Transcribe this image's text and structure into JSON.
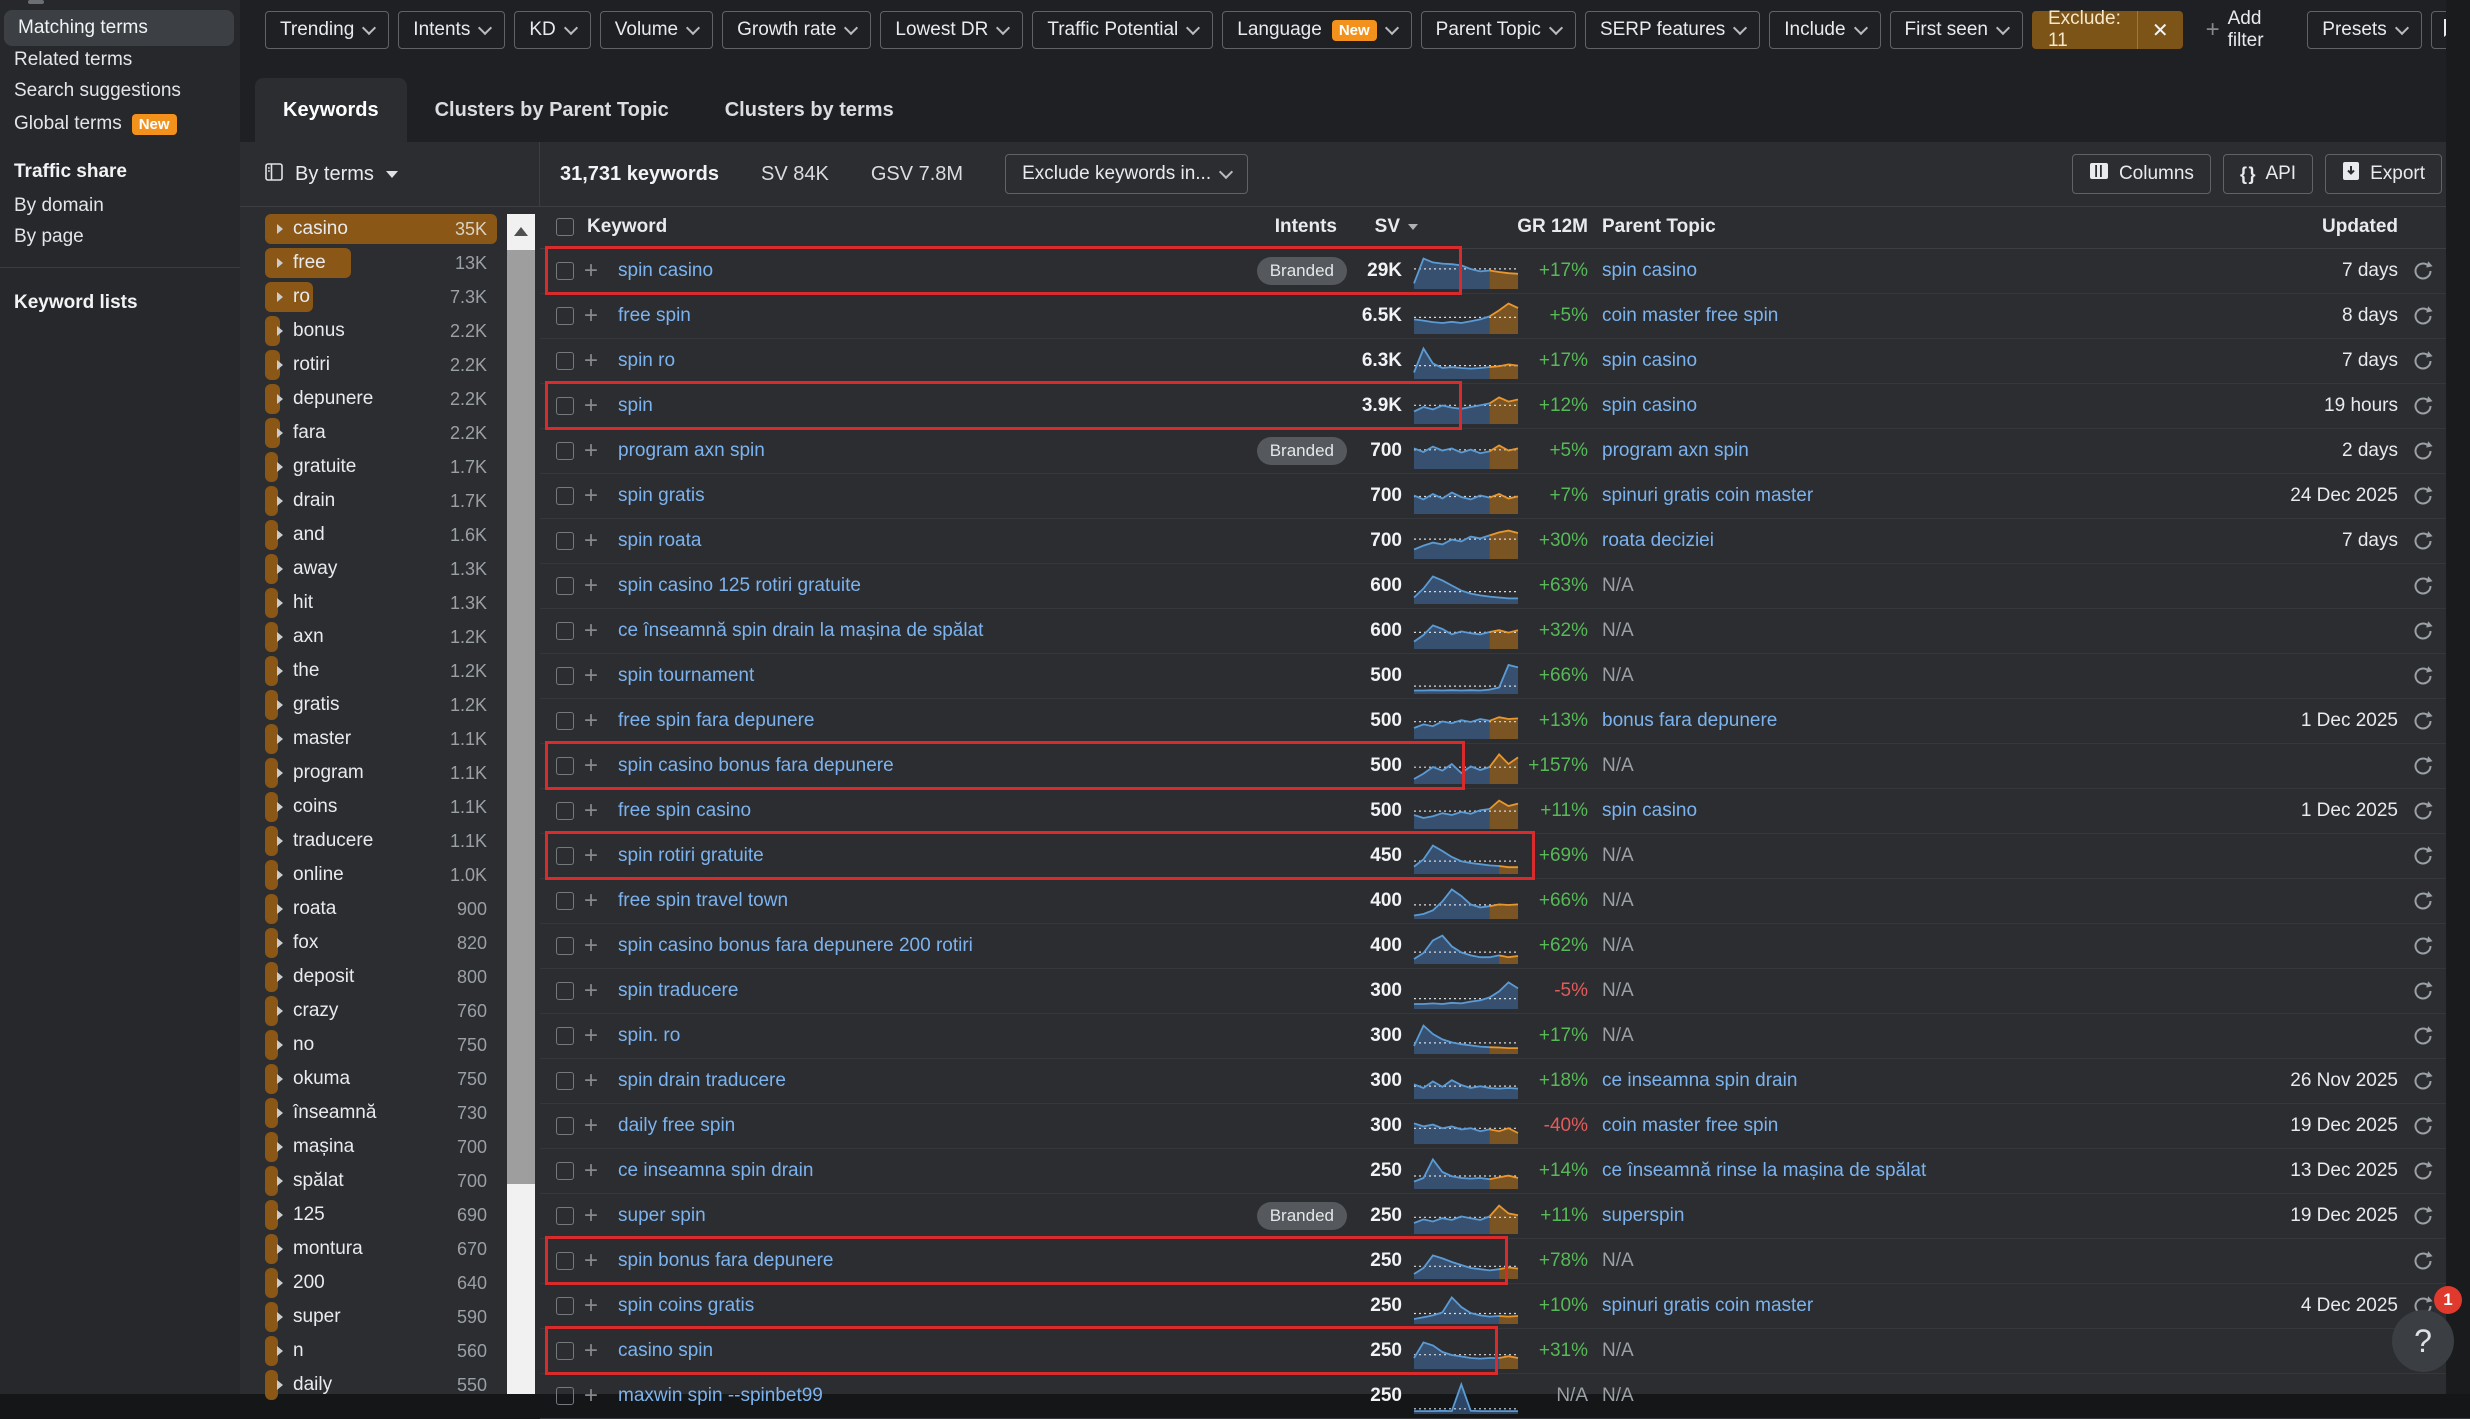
{
  "colors": {
    "accent_amber": "#8a5717",
    "link_blue": "#7cb3ef",
    "positive_green": "#57b957",
    "negative_red": "#e25c5c",
    "badge_orange": "#f2921d",
    "annotation_red": "#d92b2b"
  },
  "sidebar": {
    "items": [
      {
        "label": "Matching terms",
        "active": true
      },
      {
        "label": "Related terms"
      },
      {
        "label": "Search suggestions"
      },
      {
        "label": "Global terms",
        "badge": "New"
      }
    ],
    "traffic_share": {
      "title": "Traffic share",
      "items": [
        {
          "label": "By domain"
        },
        {
          "label": "By page"
        }
      ]
    },
    "keyword_lists": "Keyword lists"
  },
  "filters": {
    "dropdowns": [
      {
        "label": "Trending"
      },
      {
        "label": "Intents"
      },
      {
        "label": "KD"
      },
      {
        "label": "Volume"
      },
      {
        "label": "Growth rate"
      },
      {
        "label": "Lowest DR"
      },
      {
        "label": "Traffic Potential"
      },
      {
        "label": "Language",
        "badge": "New"
      },
      {
        "label": "Parent Topic"
      },
      {
        "label": "SERP features"
      },
      {
        "label": "Include"
      },
      {
        "label": "First seen"
      }
    ],
    "exclude": {
      "label": "Exclude: 11",
      "close": "✕"
    },
    "add_filter": "Add filter",
    "presets": "Presets"
  },
  "tabs": [
    {
      "label": "Keywords",
      "active": true
    },
    {
      "label": "Clusters by Parent Topic"
    },
    {
      "label": "Clusters by terms"
    }
  ],
  "toolbar": {
    "view_label": "By terms",
    "keywords_count": "31,731 keywords",
    "sv": "SV 84K",
    "gsv": "GSV 7.8M",
    "exclude_keywords": "Exclude keywords in...",
    "columns_label": "Columns",
    "api_label": "API",
    "export_label": "Export"
  },
  "terms": {
    "max": 35000,
    "items": [
      {
        "term": "casino",
        "count": "35K",
        "value": 35000,
        "selected": true
      },
      {
        "term": "free",
        "count": "13K",
        "value": 13000
      },
      {
        "term": "ro",
        "count": "7.3K",
        "value": 7300
      },
      {
        "term": "bonus",
        "count": "2.2K",
        "value": 2200
      },
      {
        "term": "rotiri",
        "count": "2.2K",
        "value": 2200
      },
      {
        "term": "depunere",
        "count": "2.2K",
        "value": 2200
      },
      {
        "term": "fara",
        "count": "2.2K",
        "value": 2200
      },
      {
        "term": "gratuite",
        "count": "1.7K",
        "value": 1700
      },
      {
        "term": "drain",
        "count": "1.7K",
        "value": 1700
      },
      {
        "term": "and",
        "count": "1.6K",
        "value": 1600
      },
      {
        "term": "away",
        "count": "1.3K",
        "value": 1300
      },
      {
        "term": "hit",
        "count": "1.3K",
        "value": 1300
      },
      {
        "term": "axn",
        "count": "1.2K",
        "value": 1200
      },
      {
        "term": "the",
        "count": "1.2K",
        "value": 1200
      },
      {
        "term": "gratis",
        "count": "1.2K",
        "value": 1200
      },
      {
        "term": "master",
        "count": "1.1K",
        "value": 1100
      },
      {
        "term": "program",
        "count": "1.1K",
        "value": 1100
      },
      {
        "term": "coins",
        "count": "1.1K",
        "value": 1100
      },
      {
        "term": "traducere",
        "count": "1.1K",
        "value": 1100
      },
      {
        "term": "online",
        "count": "1.0K",
        "value": 1000
      },
      {
        "term": "roata",
        "count": "900",
        "value": 900
      },
      {
        "term": "fox",
        "count": "820",
        "value": 820
      },
      {
        "term": "deposit",
        "count": "800",
        "value": 800
      },
      {
        "term": "crazy",
        "count": "760",
        "value": 760
      },
      {
        "term": "no",
        "count": "750",
        "value": 750
      },
      {
        "term": "okuma",
        "count": "750",
        "value": 750
      },
      {
        "term": "înseamnă",
        "count": "730",
        "value": 730
      },
      {
        "term": "mașina",
        "count": "700",
        "value": 700
      },
      {
        "term": "spălat",
        "count": "700",
        "value": 700
      },
      {
        "term": "125",
        "count": "690",
        "value": 690
      },
      {
        "term": "montura",
        "count": "670",
        "value": 670
      },
      {
        "term": "200",
        "count": "640",
        "value": 640
      },
      {
        "term": "super",
        "count": "590",
        "value": 590
      },
      {
        "term": "n",
        "count": "560",
        "value": 560
      },
      {
        "term": "daily",
        "count": "550",
        "value": 550
      }
    ]
  },
  "table": {
    "headers": {
      "keyword": "Keyword",
      "intents": "Intents",
      "sv": "SV",
      "gr": "GR 12M",
      "parent": "Parent Topic",
      "updated": "Updated"
    },
    "rows": [
      {
        "k": "spin casino",
        "badge": "Branded",
        "sv": "29K",
        "gr": "+17%",
        "parent": "spin casino",
        "updated": "7 days",
        "red": 917,
        "spark": {
          "v": [
            0.12,
            0.95,
            0.82,
            0.78,
            0.76,
            0.72,
            0.6,
            0.52,
            0.55,
            0.5,
            0.46,
            0.44
          ],
          "o": 8
        }
      },
      {
        "k": "free spin",
        "sv": "6.5K",
        "gr": "+5%",
        "parent": "coin master free spin",
        "updated": "8 days",
        "spark": {
          "v": [
            0.42,
            0.38,
            0.33,
            0.3,
            0.34,
            0.3,
            0.36,
            0.42,
            0.52,
            0.72,
            0.95,
            0.8
          ],
          "o": 8
        }
      },
      {
        "k": "spin ro",
        "sv": "6.3K",
        "gr": "+17%",
        "parent": "spin casino",
        "updated": "7 days",
        "spark": {
          "v": [
            0.15,
            0.95,
            0.45,
            0.3,
            0.33,
            0.3,
            0.28,
            0.3,
            0.33,
            0.36,
            0.42,
            0.38
          ],
          "o": 8
        }
      },
      {
        "k": "spin",
        "sv": "3.9K",
        "gr": "+12%",
        "parent": "spin casino",
        "updated": "19 hours",
        "red": 917,
        "spark": {
          "v": [
            0.35,
            0.5,
            0.42,
            0.55,
            0.48,
            0.44,
            0.5,
            0.56,
            0.62,
            0.82,
            0.68,
            0.75
          ],
          "o": 8
        }
      },
      {
        "k": "program axn spin",
        "badge": "Branded",
        "sv": "700",
        "gr": "+5%",
        "parent": "program axn spin",
        "updated": "2 days",
        "spark": {
          "v": [
            0.62,
            0.5,
            0.68,
            0.55,
            0.62,
            0.48,
            0.58,
            0.46,
            0.52,
            0.72,
            0.55,
            0.62
          ],
          "o": 8
        }
      },
      {
        "k": "spin gratis",
        "sv": "700",
        "gr": "+7%",
        "parent": "spinuri gratis coin master",
        "updated": "24 Dec 2025",
        "spark": {
          "v": [
            0.55,
            0.42,
            0.6,
            0.45,
            0.65,
            0.5,
            0.42,
            0.55,
            0.48,
            0.6,
            0.45,
            0.52
          ],
          "o": 8
        }
      },
      {
        "k": "spin roata",
        "sv": "700",
        "gr": "+30%",
        "parent": "roata deciziei",
        "updated": "7 days",
        "spark": {
          "v": [
            0.25,
            0.38,
            0.48,
            0.42,
            0.58,
            0.52,
            0.68,
            0.62,
            0.72,
            0.82,
            0.88,
            0.8
          ],
          "o": 8
        }
      },
      {
        "k": "spin casino 125 rotiri gratuite",
        "sv": "600",
        "gr": "+63%",
        "parent": "N/A",
        "updated": "",
        "spark": {
          "v": [
            0.15,
            0.45,
            0.85,
            0.72,
            0.55,
            0.38,
            0.28,
            0.22,
            0.18,
            0.15,
            0.12,
            0.12
          ],
          "o": -1
        }
      },
      {
        "k": "ce înseamnă spin drain la mașina de spălat",
        "sv": "600",
        "gr": "+32%",
        "parent": "N/A",
        "updated": "",
        "spark": {
          "v": [
            0.18,
            0.4,
            0.72,
            0.6,
            0.42,
            0.52,
            0.46,
            0.42,
            0.5,
            0.56,
            0.48,
            0.56
          ],
          "o": 8
        }
      },
      {
        "k": "spin tournament",
        "sv": "500",
        "gr": "+66%",
        "parent": "N/A",
        "updated": "",
        "spark": {
          "v": [
            0.05,
            0.05,
            0.06,
            0.05,
            0.06,
            0.05,
            0.06,
            0.05,
            0.08,
            0.15,
            0.9,
            0.82
          ],
          "o": -1
        }
      },
      {
        "k": "free spin fara depunere",
        "sv": "500",
        "gr": "+13%",
        "parent": "bonus fara depunere",
        "updated": "1 Dec 2025",
        "spark": {
          "v": [
            0.3,
            0.42,
            0.36,
            0.52,
            0.46,
            0.56,
            0.5,
            0.6,
            0.54,
            0.66,
            0.6,
            0.62
          ],
          "o": 8
        }
      },
      {
        "k": "spin casino bonus fara depunere",
        "sv": "500",
        "gr": "+157%",
        "parent": "N/A",
        "updated": "",
        "red": 920,
        "spark": {
          "v": [
            0.1,
            0.28,
            0.5,
            0.38,
            0.6,
            0.3,
            0.52,
            0.4,
            0.5,
            0.92,
            0.6,
            0.82
          ],
          "o": 8
        }
      },
      {
        "k": "free spin casino",
        "sv": "500",
        "gr": "+11%",
        "parent": "spin casino",
        "updated": "1 Dec 2025",
        "spark": {
          "v": [
            0.4,
            0.3,
            0.36,
            0.46,
            0.4,
            0.5,
            0.44,
            0.56,
            0.6,
            0.88,
            0.7,
            0.78
          ],
          "o": 8
        }
      },
      {
        "k": "spin rotiri gratuite",
        "sv": "450",
        "gr": "+69%",
        "parent": "N/A",
        "updated": "",
        "red": 990,
        "spark": {
          "v": [
            0.18,
            0.42,
            0.88,
            0.7,
            0.5,
            0.36,
            0.3,
            0.26,
            0.22,
            0.2,
            0.16,
            0.16
          ],
          "o": 9
        }
      },
      {
        "k": "free spin travel town",
        "sv": "400",
        "gr": "+66%",
        "parent": "N/A",
        "updated": "",
        "spark": {
          "v": [
            0.05,
            0.1,
            0.22,
            0.52,
            0.92,
            0.7,
            0.42,
            0.32,
            0.36,
            0.42,
            0.4,
            0.42
          ],
          "o": 8
        }
      },
      {
        "k": "spin casino bonus fara depunere 200 rotiri",
        "sv": "400",
        "gr": "+62%",
        "parent": "N/A",
        "updated": "",
        "spark": {
          "v": [
            0.1,
            0.3,
            0.72,
            0.88,
            0.52,
            0.32,
            0.22,
            0.16,
            0.16,
            0.22,
            0.16,
            0.2
          ],
          "o": 9
        }
      },
      {
        "k": "spin traducere",
        "sv": "300",
        "gr": "-5%",
        "parent": "N/A",
        "updated": "",
        "spark": {
          "v": [
            0.1,
            0.1,
            0.12,
            0.1,
            0.14,
            0.12,
            0.18,
            0.22,
            0.32,
            0.52,
            0.82,
            0.62
          ],
          "o": -1
        }
      },
      {
        "k": "spin. ro",
        "sv": "300",
        "gr": "+17%",
        "parent": "N/A",
        "updated": "",
        "spark": {
          "v": [
            0.2,
            0.88,
            0.6,
            0.42,
            0.32,
            0.26,
            0.22,
            0.18,
            0.16,
            0.15,
            0.13,
            0.13
          ],
          "o": 8
        }
      },
      {
        "k": "spin drain traducere",
        "sv": "300",
        "gr": "+18%",
        "parent": "ce inseamna spin drain",
        "updated": "26 Nov 2025",
        "spark": {
          "v": [
            0.42,
            0.3,
            0.52,
            0.34,
            0.56,
            0.4,
            0.3,
            0.36,
            0.3,
            0.28,
            0.3,
            0.28
          ],
          "o": -1
        }
      },
      {
        "k": "daily free spin",
        "sv": "300",
        "gr": "-40%",
        "parent": "coin master free spin",
        "updated": "19 Dec 2025",
        "spark": {
          "v": [
            0.62,
            0.52,
            0.58,
            0.46,
            0.52,
            0.42,
            0.46,
            0.36,
            0.42,
            0.36,
            0.46,
            0.3
          ],
          "o": 8
        }
      },
      {
        "k": "ce inseamna spin drain",
        "sv": "250",
        "gr": "+14%",
        "parent": "ce înseamnă rinse la mașina de spălat",
        "updated": "13 Dec 2025",
        "spark": {
          "v": [
            0.18,
            0.3,
            0.92,
            0.5,
            0.36,
            0.3,
            0.28,
            0.3,
            0.26,
            0.32,
            0.38,
            0.3
          ],
          "o": 8
        }
      },
      {
        "k": "super spin",
        "badge": "Branded",
        "sv": "250",
        "gr": "+11%",
        "parent": "superspin",
        "updated": "19 Dec 2025",
        "spark": {
          "v": [
            0.3,
            0.42,
            0.35,
            0.46,
            0.4,
            0.52,
            0.46,
            0.4,
            0.52,
            0.88,
            0.62,
            0.56
          ],
          "o": 8
        }
      },
      {
        "k": "spin bonus fara depunere",
        "sv": "250",
        "gr": "+78%",
        "parent": "N/A",
        "updated": "",
        "red": 963,
        "spark": {
          "v": [
            0.1,
            0.3,
            0.72,
            0.62,
            0.5,
            0.4,
            0.3,
            0.26,
            0.22,
            0.26,
            0.32,
            0.28
          ],
          "o": 9
        }
      },
      {
        "k": "spin coins gratis",
        "sv": "250",
        "gr": "+10%",
        "parent": "spinuri gratis coin master",
        "updated": "4 Dec 2025",
        "spark": {
          "v": [
            0.1,
            0.16,
            0.22,
            0.32,
            0.82,
            0.5,
            0.3,
            0.22,
            0.18,
            0.2,
            0.18,
            0.2
          ],
          "o": 9
        }
      },
      {
        "k": "casino spin",
        "sv": "250",
        "gr": "+31%",
        "parent": "N/A",
        "updated": "",
        "red": 953,
        "spark": {
          "v": [
            0.3,
            0.82,
            0.72,
            0.5,
            0.4,
            0.35,
            0.3,
            0.28,
            0.3,
            0.3,
            0.36,
            0.3
          ],
          "o": 9
        }
      },
      {
        "k": "maxwin spin --spinbet99",
        "sv": "250",
        "gr": "N/A",
        "parent": "N/A",
        "updated": "",
        "refresh": false,
        "spark": {
          "v": [
            0.03,
            0.03,
            0.03,
            0.04,
            0.03,
            0.92,
            0.04,
            0.03,
            0.03,
            0.03,
            0.03,
            0.03
          ],
          "o": -1
        }
      }
    ]
  },
  "help": {
    "question": "?",
    "badge": "1"
  }
}
